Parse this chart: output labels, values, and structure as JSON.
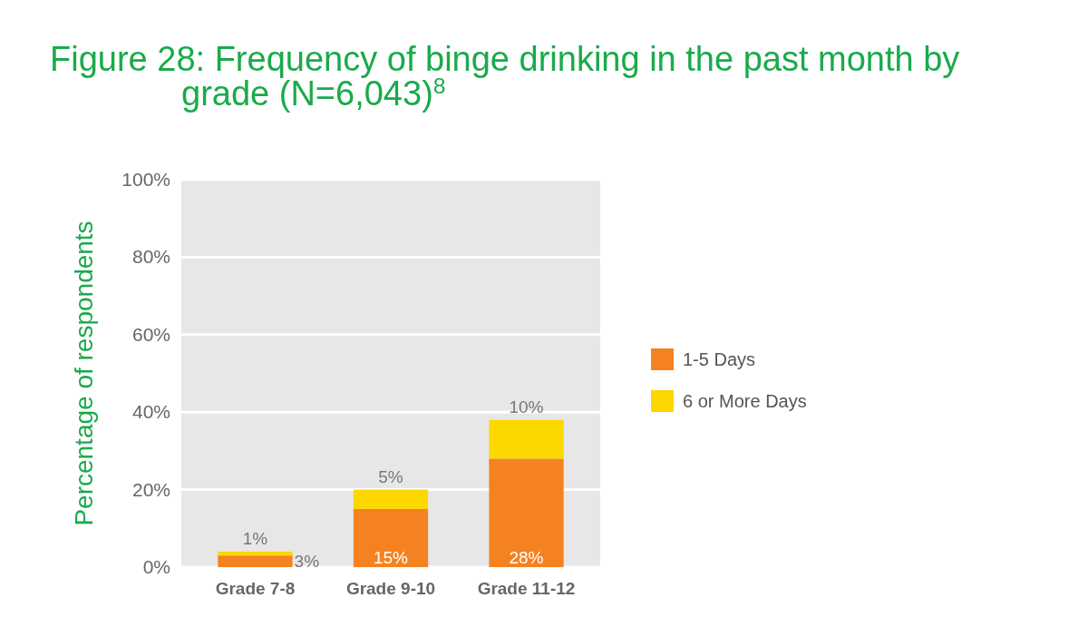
{
  "chart_data": {
    "type": "bar",
    "stacked": true,
    "title": "Figure 28: Frequency of binge drinking in the past month by grade (N=6,043)$^{8}$",
    "ylabel": "Percentage of respondents",
    "categories": [
      "Grade 7-8",
      "Grade 9-10",
      "Grade 11-12"
    ],
    "series": [
      {
        "name": "1-5 Days",
        "color": "#f58220",
        "values": [
          3,
          15,
          28
        ],
        "value_labels": [
          "3%",
          "15%",
          "28%"
        ]
      },
      {
        "name": "6 or More Days",
        "color": "#fcd700",
        "values": [
          1,
          5,
          10
        ],
        "value_labels": [
          "1%",
          "5%",
          "10%"
        ]
      }
    ],
    "ylim": [
      0,
      100
    ],
    "yticks": [
      {
        "value": 0,
        "label": "0%"
      },
      {
        "value": 20,
        "label": "20%"
      },
      {
        "value": 40,
        "label": "40%"
      },
      {
        "value": 60,
        "label": "60%"
      },
      {
        "value": 80,
        "label": "80%"
      },
      {
        "value": 100,
        "label": "100%"
      }
    ],
    "grid": "y",
    "legend": "right"
  }
}
